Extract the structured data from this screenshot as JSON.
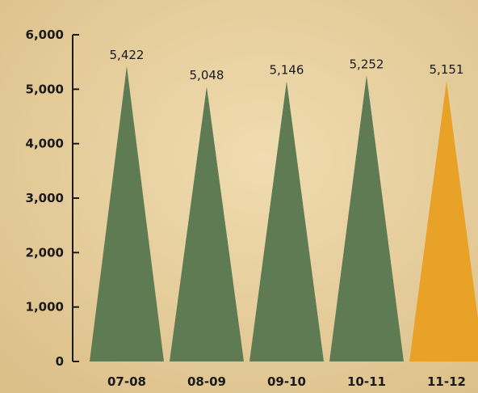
{
  "chart_data": {
    "type": "bar",
    "categories": [
      "07-08",
      "08-09",
      "09-10",
      "10-11",
      "11-12"
    ],
    "values": [
      5422,
      5048,
      5146,
      5252,
      5151
    ],
    "data_labels": [
      "5,422",
      "5,048",
      "5,146",
      "5,252",
      "5,151"
    ],
    "yticks": [
      0,
      1000,
      2000,
      3000,
      4000,
      5000,
      6000
    ],
    "ytick_labels": [
      "0",
      "1,000",
      "2,000",
      "3,000",
      "4,000",
      "5,000",
      "6,000"
    ],
    "ylim": [
      0,
      6000
    ],
    "title": "",
    "xlabel": "",
    "ylabel": "",
    "grid": false,
    "bar_shape": "triangle",
    "colors": [
      "#5e7b54",
      "#5e7b54",
      "#5e7b54",
      "#5e7b54",
      "#e8a227"
    ],
    "background_color": "#e6cf9c",
    "axis_color": "#1a1a1a"
  }
}
